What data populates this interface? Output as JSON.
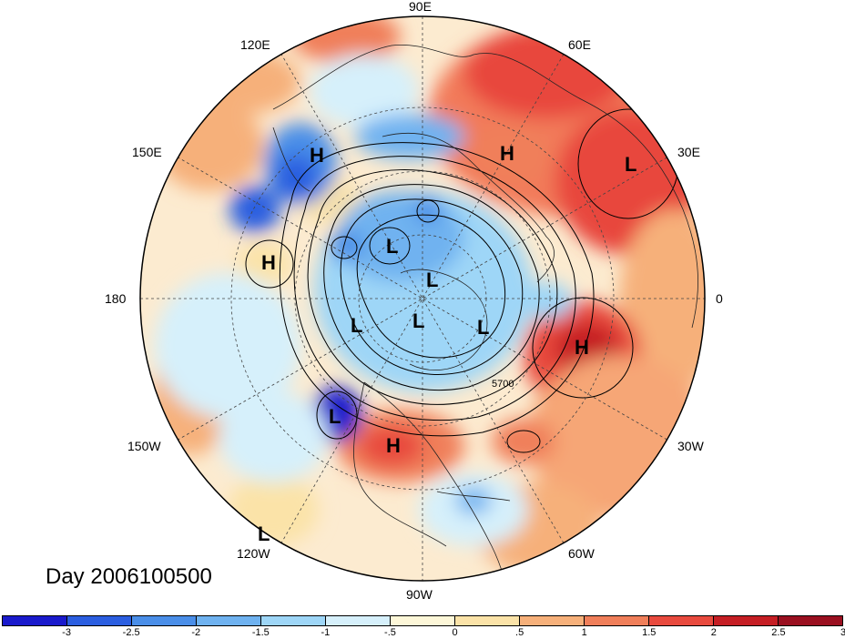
{
  "map": {
    "title": "Day 2006100500",
    "contour_label": "5700",
    "lon_labels": [
      {
        "id": "90E",
        "text": "90E"
      },
      {
        "id": "60E",
        "text": "60E"
      },
      {
        "id": "30E",
        "text": "30E"
      },
      {
        "id": "0",
        "text": "0"
      },
      {
        "id": "30W",
        "text": "30W"
      },
      {
        "id": "60W",
        "text": "60W"
      },
      {
        "id": "90W",
        "text": "90W"
      },
      {
        "id": "120W",
        "text": "120W"
      },
      {
        "id": "150W",
        "text": "150W"
      },
      {
        "id": "180",
        "text": "180"
      },
      {
        "id": "150E",
        "text": "150E"
      },
      {
        "id": "120E",
        "text": "120E"
      }
    ],
    "pressure_centers": [
      {
        "text": "H"
      },
      {
        "text": "H"
      },
      {
        "text": "L"
      },
      {
        "text": "H"
      },
      {
        "text": "L"
      },
      {
        "text": "L"
      },
      {
        "text": "L"
      },
      {
        "text": "L"
      },
      {
        "text": "L"
      },
      {
        "text": "H"
      },
      {
        "text": "L"
      },
      {
        "text": "H"
      },
      {
        "text": "L"
      }
    ]
  },
  "colorbar": {
    "colors": [
      "#1a1acc",
      "#2b5ee0",
      "#4a8ee8",
      "#6fb2f0",
      "#9ed6f7",
      "#d6f0fb",
      "#fdf7d8",
      "#fbe3a8",
      "#f6b07a",
      "#f07f5a",
      "#e84a3e",
      "#c51e24",
      "#9a1020"
    ],
    "ticks": [
      "-3",
      "-2.5",
      "-2",
      "-1.5",
      "-1",
      "-.5",
      "0",
      ".5",
      "1",
      "1.5",
      "2",
      "2.5",
      "3"
    ]
  }
}
